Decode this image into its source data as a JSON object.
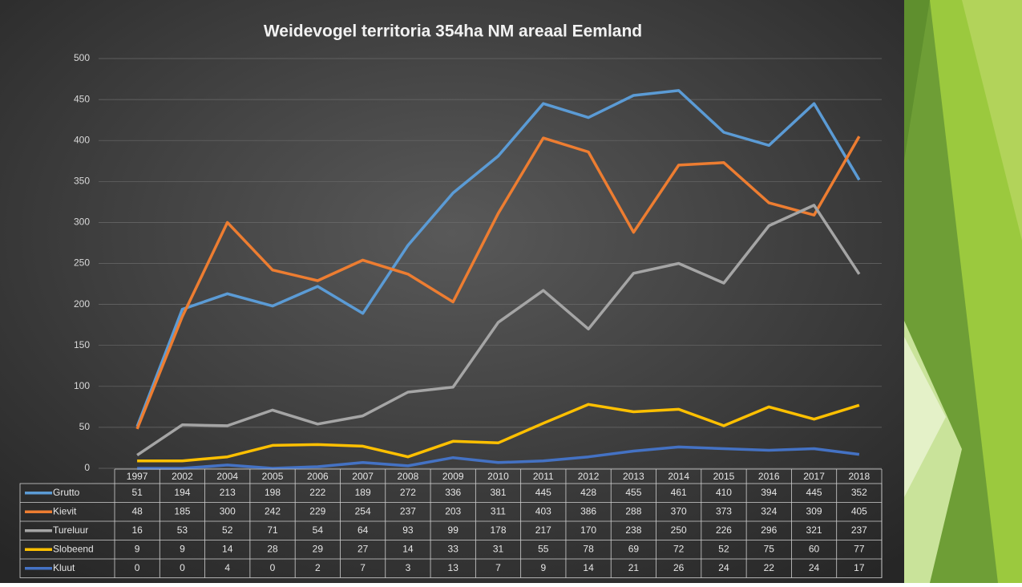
{
  "chart_data": {
    "type": "line",
    "title": "Weidevogel territoria 354ha NM areaal Eemland",
    "categories": [
      "1997",
      "2002",
      "2004",
      "2005",
      "2006",
      "2007",
      "2008",
      "2009",
      "2010",
      "2011",
      "2012",
      "2013",
      "2014",
      "2015",
      "2016",
      "2017",
      "2018"
    ],
    "series": [
      {
        "name": "Grutto",
        "color": "#5b9bd5",
        "values": [
          51,
          194,
          213,
          198,
          222,
          189,
          272,
          336,
          381,
          445,
          428,
          455,
          461,
          410,
          394,
          445,
          352
        ]
      },
      {
        "name": "Kievit",
        "color": "#ed7d31",
        "values": [
          48,
          185,
          300,
          242,
          229,
          254,
          237,
          203,
          311,
          403,
          386,
          288,
          370,
          373,
          324,
          309,
          405
        ]
      },
      {
        "name": "Tureluur",
        "color": "#a5a5a5",
        "values": [
          16,
          53,
          52,
          71,
          54,
          64,
          93,
          99,
          178,
          217,
          170,
          238,
          250,
          226,
          296,
          321,
          237
        ]
      },
      {
        "name": "Slobeend",
        "color": "#ffc000",
        "values": [
          9,
          9,
          14,
          28,
          29,
          27,
          14,
          33,
          31,
          55,
          78,
          69,
          72,
          52,
          75,
          60,
          77
        ]
      },
      {
        "name": "Kluut",
        "color": "#4472c4",
        "values": [
          0,
          0,
          4,
          0,
          2,
          7,
          3,
          13,
          7,
          9,
          14,
          21,
          26,
          24,
          22,
          24,
          17
        ]
      }
    ],
    "ylim": [
      0,
      500
    ],
    "yticks": [
      0,
      50,
      100,
      150,
      200,
      250,
      300,
      350,
      400,
      450,
      500
    ],
    "grid": true,
    "data_table": true
  }
}
